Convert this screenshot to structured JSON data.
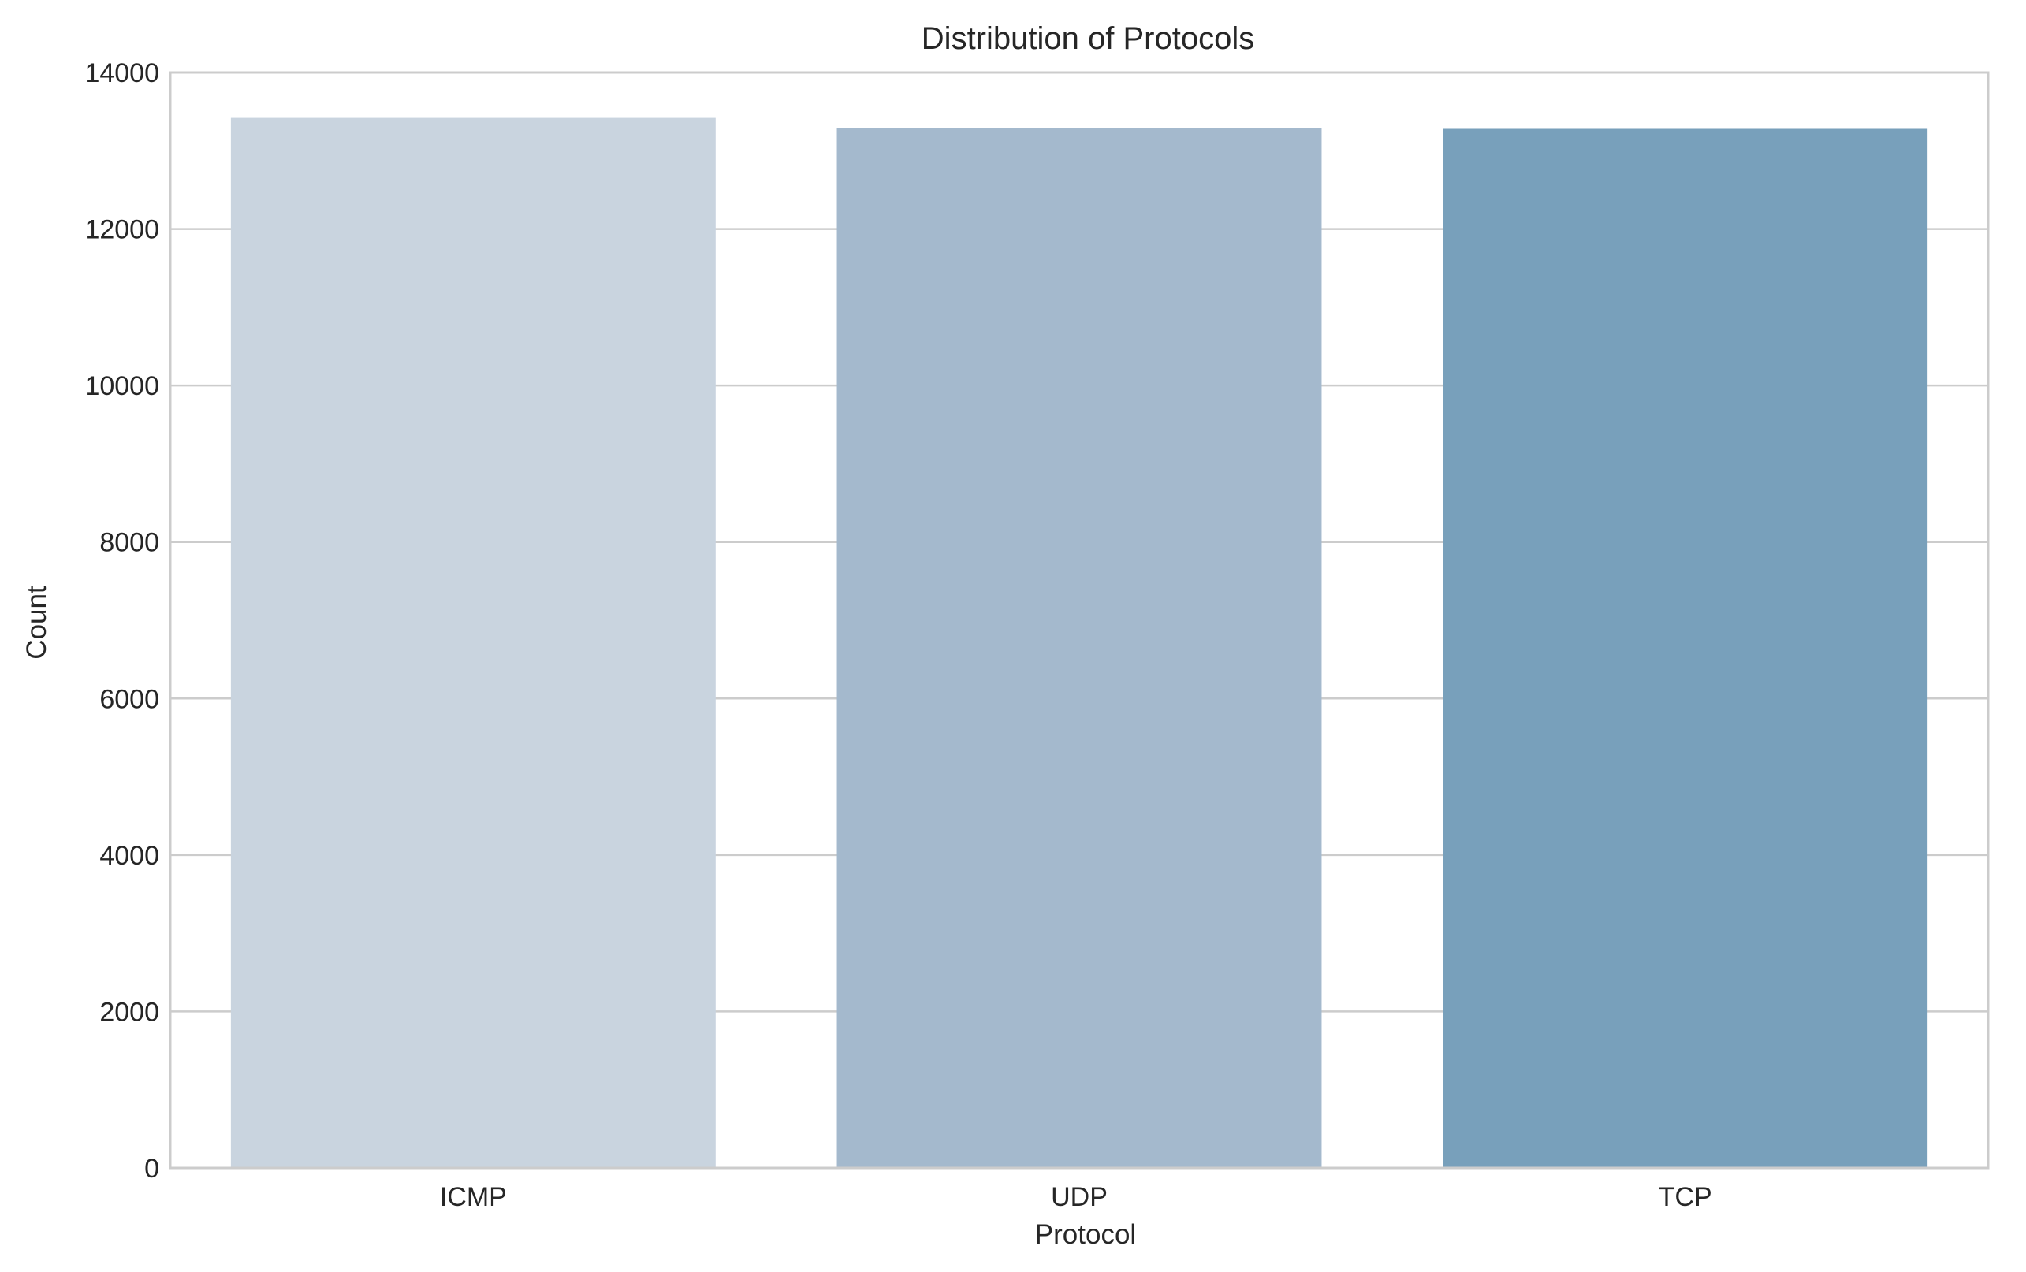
{
  "chart_data": {
    "type": "bar",
    "title": "Distribution of Protocols",
    "xlabel": "Protocol",
    "ylabel": "Count",
    "categories": [
      "ICMP",
      "UDP",
      "TCP"
    ],
    "values": [
      13420,
      13290,
      13280
    ],
    "colors": [
      "#c9d4df",
      "#a4b9cd",
      "#78a0bb"
    ],
    "ylim": [
      0,
      14000
    ],
    "yticks": [
      0,
      2000,
      4000,
      6000,
      8000,
      10000,
      12000,
      14000
    ],
    "ytick_labels": [
      "0",
      "2000",
      "4000",
      "6000",
      "8000",
      "10000",
      "12000",
      "14000"
    ],
    "grid": "horizontal",
    "grid_color": "#cccccc",
    "frame_color": "#cccccc",
    "background": "#ffffff"
  }
}
